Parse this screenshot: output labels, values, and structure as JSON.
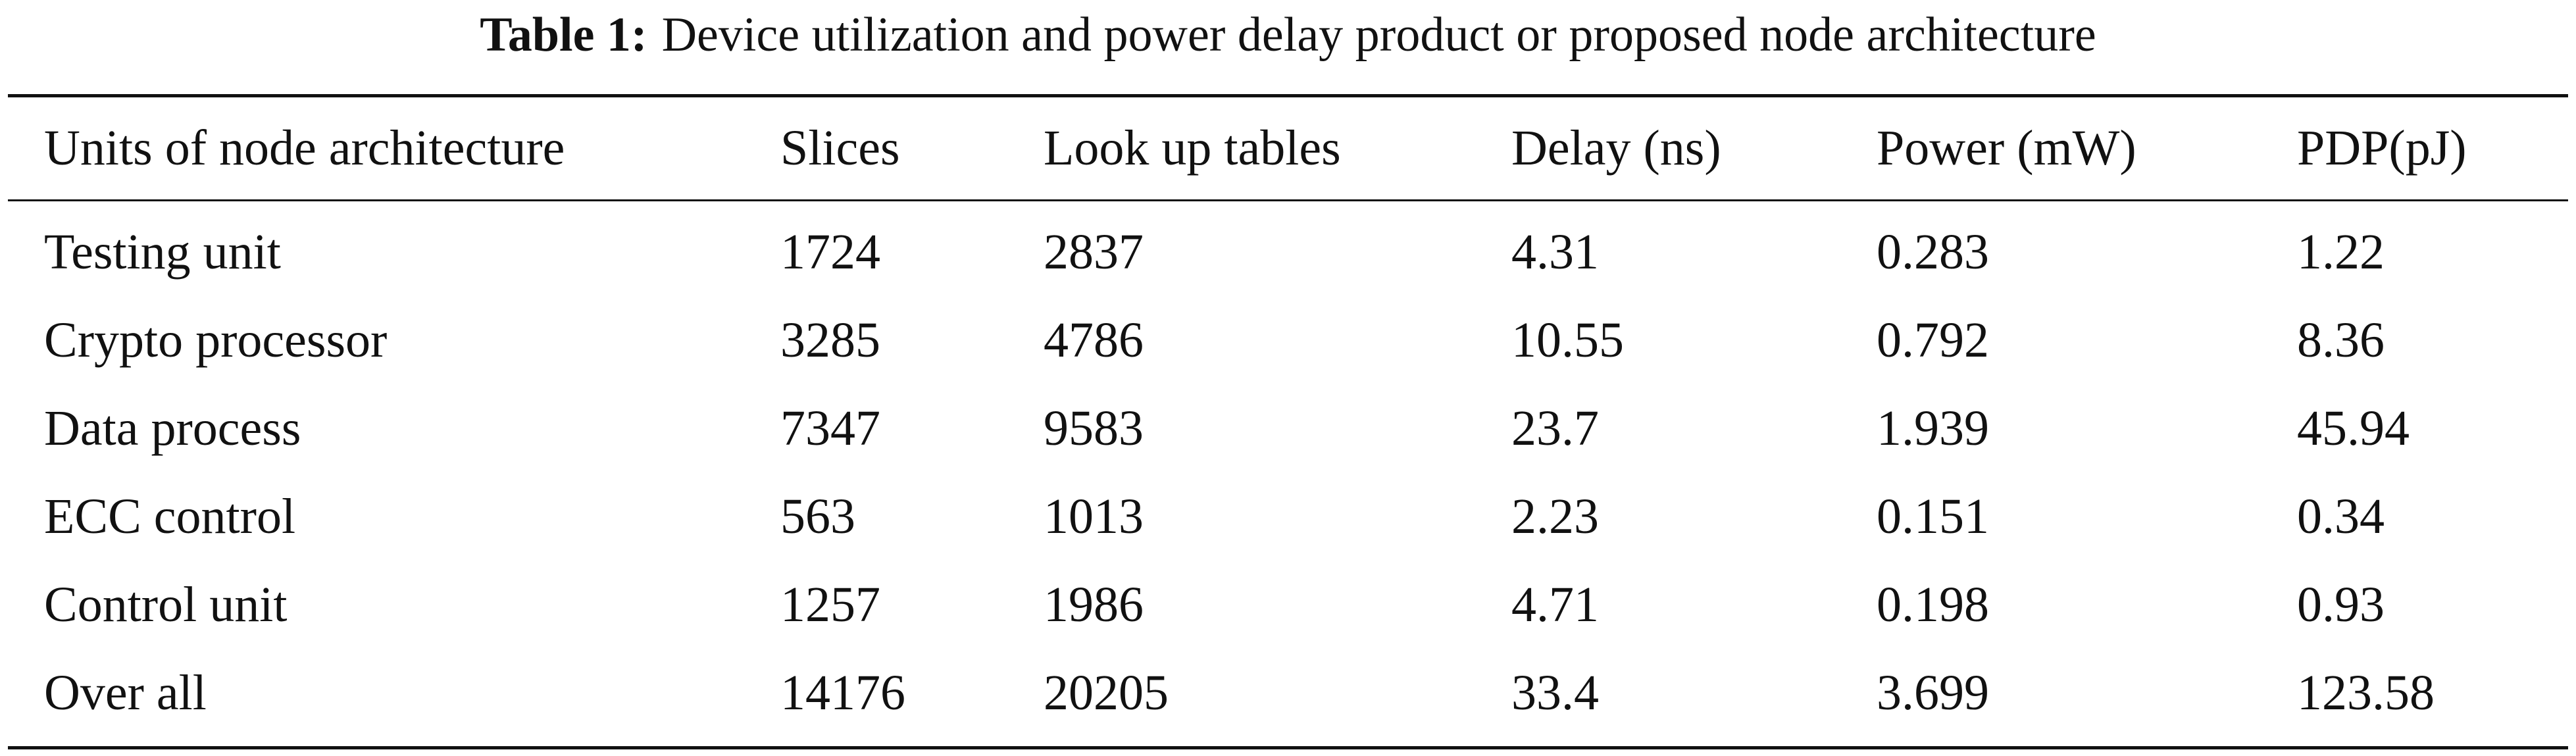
{
  "table": {
    "caption": {
      "label": "Table 1:",
      "text": "Device utilization and power delay product or proposed node architecture"
    },
    "headers": [
      "Units of node architecture",
      "Slices",
      "Look up tables",
      "Delay (ns)",
      "Power (mW)",
      "PDP(pJ)"
    ],
    "rows": [
      [
        "Testing unit",
        "1724",
        "2837",
        "4.31",
        "0.283",
        "1.22"
      ],
      [
        "Crypto processor",
        "3285",
        "4786",
        "10.55",
        "0.792",
        "8.36"
      ],
      [
        "Data process",
        "7347",
        "9583",
        "23.7",
        "1.939",
        "45.94"
      ],
      [
        "ECC control",
        "563",
        "1013",
        "2.23",
        "0.151",
        "0.34"
      ],
      [
        "Control unit",
        "1257",
        "1986",
        "4.71",
        "0.198",
        "0.93"
      ],
      [
        "Over all",
        "14176",
        "20205",
        "33.4",
        "3.699",
        "123.58"
      ]
    ]
  }
}
